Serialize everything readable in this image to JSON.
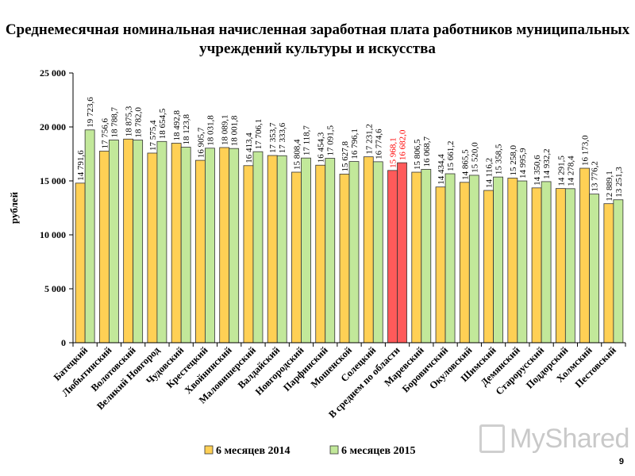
{
  "page": {
    "title": "Среднемесячная номинальная начисленная заработная плата работников муниципальных учреждений культуры и искусства",
    "page_number": "9",
    "watermark": "MyShared"
  },
  "chart_data": {
    "type": "bar",
    "ylabel": "рублей",
    "ylim": [
      0,
      25000
    ],
    "yticks": [
      0,
      5000,
      10000,
      15000,
      20000,
      25000
    ],
    "ytick_labels": [
      "0",
      "5 000",
      "10 000",
      "15 000",
      "20 000",
      "25 000"
    ],
    "grid": false,
    "legend_position": "bottom",
    "categories": [
      "Батецкий",
      "Любытинский",
      "Волотовский",
      "Великий Новгород",
      "Чудовский",
      "Крестецкий",
      "Хвойнинский",
      "Маловишерский",
      "Валдайский",
      "Новгородский",
      "Парфинский",
      "Мошенской",
      "Солецкий",
      "В среднем по области",
      "Маревский",
      "Боровичский",
      "Окуловский",
      "Шимский",
      "Демянский",
      "Старорусский",
      "Поддорский",
      "Холмский",
      "Пестовский"
    ],
    "highlight_category": "В среднем по области",
    "highlight_colors": {
      "fill": "#ff5a5a",
      "label": "#ff0000"
    },
    "series": [
      {
        "name": "6 месяцев 2014",
        "color": "#ffd055",
        "values": [
          14791.6,
          17756.6,
          18875.3,
          17575.4,
          18492.8,
          16905.7,
          18089.1,
          16413.4,
          17353.7,
          15808.4,
          16454.3,
          15627.8,
          17231.2,
          15968.1,
          15806.5,
          14434.4,
          14865.5,
          14116.2,
          15258.0,
          14350.6,
          14291.5,
          16173.0,
          12889.1
        ],
        "labels": [
          "14 791,6",
          "17 756,6",
          "18 875,3",
          "17 575,4",
          "18 492,8",
          "16 905,7",
          "18 089,1",
          "16 413,4",
          "17 353,7",
          "15 808,4",
          "16 454,3",
          "15 627,8",
          "17 231,2",
          "15 968,1",
          "15 806,5",
          "14 434,4",
          "14 865,5",
          "14 116,2",
          "15 258,0",
          "14 350,6",
          "14 291,5",
          "16 173,0",
          "12 889,1"
        ]
      },
      {
        "name": "6 месяцев 2015",
        "color": "#c2e89a",
        "values": [
          19723.6,
          18788.7,
          18782.0,
          18654.5,
          18123.8,
          18031.8,
          18001.8,
          17706.1,
          17333.6,
          17118.7,
          17091.5,
          16796.1,
          16774.6,
          16682.0,
          16068.7,
          15661.2,
          15520.0,
          15358.5,
          14995.9,
          14932.2,
          14278.4,
          13776.2,
          13251.3
        ],
        "labels": [
          "19 723,6",
          "18 788,7",
          "18 782,0",
          "18 654,5",
          "18 123,8",
          "18 031,8",
          "18 001,8",
          "17 706,1",
          "17 333,6",
          "17 118,7",
          "17 091,5",
          "16 796,1",
          "16 774,6",
          "16 682,0",
          "16 068,7",
          "15 661,2",
          "15 520,0",
          "15 358,5",
          "14 995,9",
          "14 932,2",
          "14 278,4",
          "13 776,2",
          "13 251,3"
        ]
      }
    ]
  }
}
